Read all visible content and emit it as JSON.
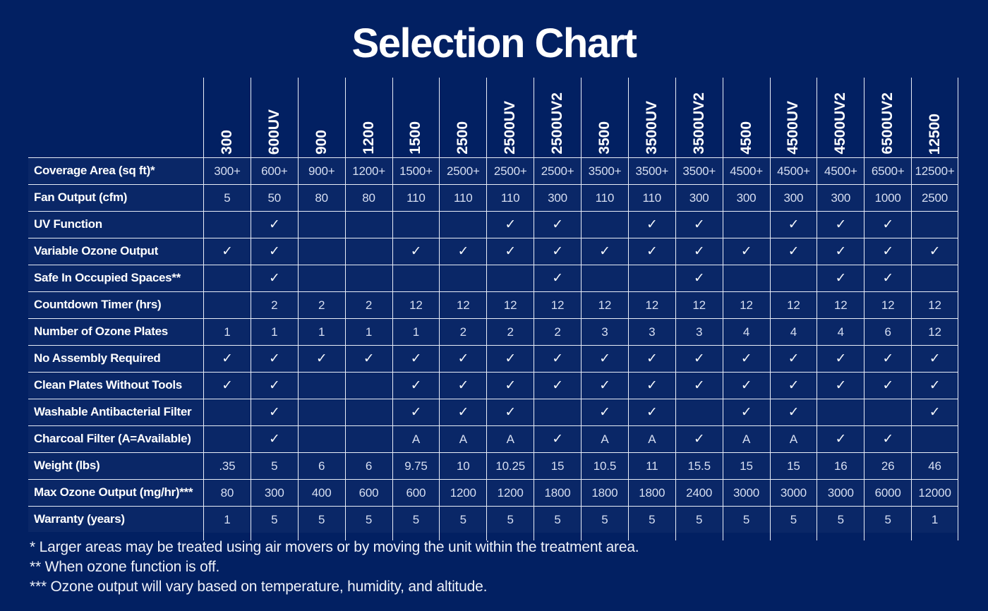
{
  "title": "Selection Chart",
  "colors": {
    "background": "#022062",
    "grid_line": "#e9eef8",
    "heading_text": "#ffffff",
    "value_text": "#d7dff2"
  },
  "chart_data": {
    "type": "table",
    "title": "Selection Chart",
    "columns": [
      "300",
      "600UV",
      "900",
      "1200",
      "1500",
      "2500",
      "2500UV",
      "2500UV2",
      "3500",
      "3500UV",
      "3500UV2",
      "4500",
      "4500UV",
      "4500UV2",
      "6500UV2",
      "12500"
    ],
    "rows": [
      {
        "label": "Coverage Area (sq ft)*",
        "values": [
          "300+",
          "600+",
          "900+",
          "1200+",
          "1500+",
          "2500+",
          "2500+",
          "2500+",
          "3500+",
          "3500+",
          "3500+",
          "4500+",
          "4500+",
          "4500+",
          "6500+",
          "12500+"
        ]
      },
      {
        "label": "Fan Output (cfm)",
        "values": [
          "5",
          "50",
          "80",
          "80",
          "110",
          "110",
          "110",
          "300",
          "110",
          "110",
          "300",
          "300",
          "300",
          "300",
          "1000",
          "2500"
        ]
      },
      {
        "label": "UV Function",
        "values": [
          "",
          "✓",
          "",
          "",
          "",
          "",
          "✓",
          "✓",
          "",
          "✓",
          "✓",
          "",
          "✓",
          "✓",
          "✓",
          ""
        ]
      },
      {
        "label": "Variable Ozone Output",
        "values": [
          "✓",
          "✓",
          "",
          "",
          "✓",
          "✓",
          "✓",
          "✓",
          "✓",
          "✓",
          "✓",
          "✓",
          "✓",
          "✓",
          "✓",
          "✓"
        ]
      },
      {
        "label": "Safe In Occupied Spaces**",
        "values": [
          "",
          "✓",
          "",
          "",
          "",
          "",
          "",
          "✓",
          "",
          "",
          "✓",
          "",
          "",
          "✓",
          "✓",
          ""
        ]
      },
      {
        "label": "Countdown Timer (hrs)",
        "values": [
          "",
          "2",
          "2",
          "2",
          "12",
          "12",
          "12",
          "12",
          "12",
          "12",
          "12",
          "12",
          "12",
          "12",
          "12",
          "12"
        ]
      },
      {
        "label": "Number of Ozone Plates",
        "values": [
          "1",
          "1",
          "1",
          "1",
          "1",
          "2",
          "2",
          "2",
          "3",
          "3",
          "3",
          "4",
          "4",
          "4",
          "6",
          "12"
        ]
      },
      {
        "label": "No Assembly Required",
        "values": [
          "✓",
          "✓",
          "✓",
          "✓",
          "✓",
          "✓",
          "✓",
          "✓",
          "✓",
          "✓",
          "✓",
          "✓",
          "✓",
          "✓",
          "✓",
          "✓"
        ]
      },
      {
        "label": "Clean Plates Without Tools",
        "values": [
          "✓",
          "✓",
          "",
          "",
          "✓",
          "✓",
          "✓",
          "✓",
          "✓",
          "✓",
          "✓",
          "✓",
          "✓",
          "✓",
          "✓",
          "✓"
        ]
      },
      {
        "label": "Washable Antibacterial Filter",
        "values": [
          "",
          "✓",
          "",
          "",
          "✓",
          "✓",
          "✓",
          "",
          "✓",
          "✓",
          "",
          "✓",
          "✓",
          "",
          "",
          "✓"
        ]
      },
      {
        "label": "Charcoal Filter (A=Available)",
        "values": [
          "",
          "✓",
          "",
          "",
          "A",
          "A",
          "A",
          "✓",
          "A",
          "A",
          "✓",
          "A",
          "A",
          "✓",
          "✓",
          ""
        ]
      },
      {
        "label": "Weight (lbs)",
        "values": [
          ".35",
          "5",
          "6",
          "6",
          "9.75",
          "10",
          "10.25",
          "15",
          "10.5",
          "11",
          "15.5",
          "15",
          "15",
          "16",
          "26",
          "46"
        ]
      },
      {
        "label": "Max Ozone Output (mg/hr)***",
        "values": [
          "80",
          "300",
          "400",
          "600",
          "600",
          "1200",
          "1200",
          "1800",
          "1800",
          "1800",
          "2400",
          "3000",
          "3000",
          "3000",
          "6000",
          "12000"
        ]
      },
      {
        "label": "Warranty (years)",
        "values": [
          "1",
          "5",
          "5",
          "5",
          "5",
          "5",
          "5",
          "5",
          "5",
          "5",
          "5",
          "5",
          "5",
          "5",
          "5",
          "1"
        ]
      }
    ]
  },
  "footnotes": [
    "* Larger areas may be treated using air movers or by moving the unit within the treatment area.",
    "** When ozone function is off.",
    "*** Ozone output will vary based on temperature, humidity, and altitude."
  ]
}
